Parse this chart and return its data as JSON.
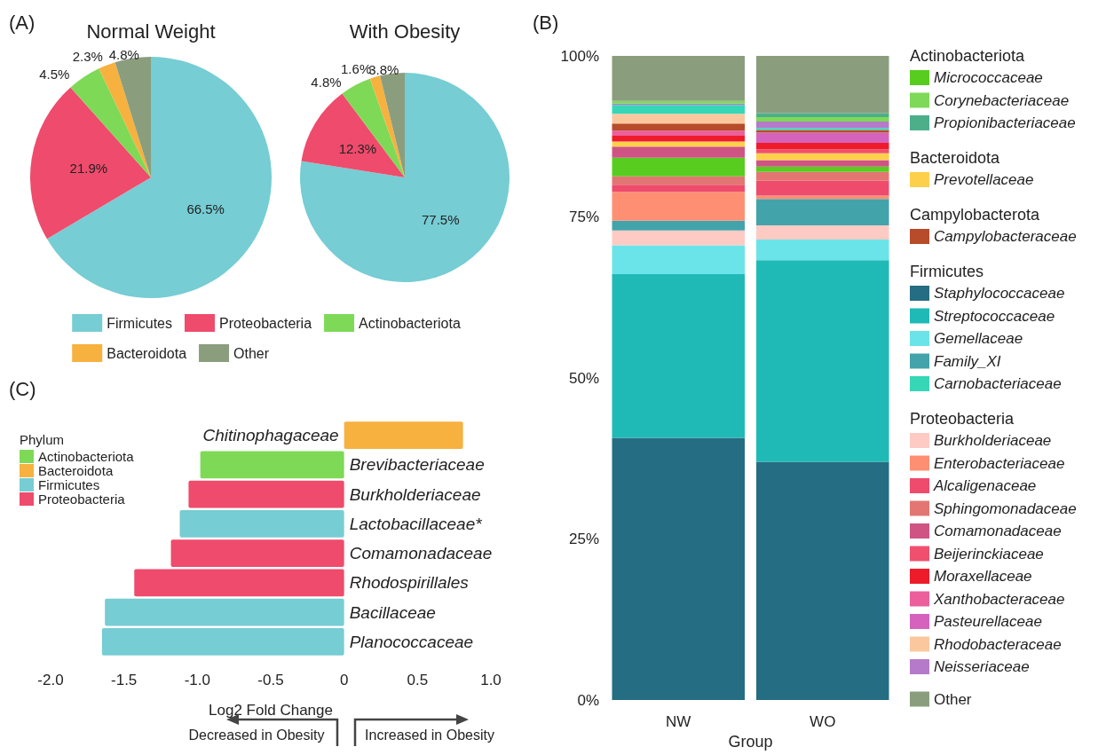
{
  "chart_data": [
    {
      "type": "pie",
      "annotations": [
        "(A)"
      ],
      "categories": [
        "Firmicutes",
        "Proteobacteria",
        "Actinobacteriota",
        "Bacteroidota",
        "Other"
      ],
      "colors": [
        "#76cdd3",
        "#ef4b6c",
        "#7ed957",
        "#f7b13e",
        "#8a9e7e"
      ],
      "legend": "bottom",
      "series": [
        {
          "name": "Normal Weight",
          "values": [
            66.5,
            21.9,
            4.5,
            2.3,
            4.8
          ],
          "value_labels": [
            "66.5%",
            "21.9%",
            "4.5%",
            "2.3%",
            "4.8%"
          ]
        },
        {
          "name": "With Obesity",
          "values": [
            77.5,
            12.3,
            4.8,
            1.6,
            3.8
          ],
          "value_labels": [
            "77.5%",
            "12.3%",
            "4.8%",
            "1.6%",
            "3.8%"
          ]
        }
      ]
    },
    {
      "type": "bar",
      "xlabel": "Group",
      "annotations": [
        "(B)",
        "Actinobacteriota",
        "Bacteroidota",
        "Campylobacterota",
        "Firmicutes",
        "Proteobacteria"
      ],
      "categories": [
        "NW",
        "WO"
      ],
      "stacked": true,
      "ylim": [
        0,
        100
      ],
      "yticks": [
        {
          "value": 0,
          "label": "0%"
        },
        {
          "value": 25,
          "label": "25%"
        },
        {
          "value": 50,
          "label": "50%"
        },
        {
          "value": 75,
          "label": "75%"
        },
        {
          "value": 100,
          "label": "100%"
        }
      ],
      "grid": false,
      "legend": "right",
      "series": [
        {
          "name": "Staphylococcaceae",
          "color": "#256d82",
          "values": [
            40.7,
            37.0
          ]
        },
        {
          "name": "Streptococcaceae",
          "color": "#1fbab6",
          "values": [
            25.4,
            31.3
          ]
        },
        {
          "name": "Gemellaceae",
          "color": "#6ae4e8",
          "values": [
            4.5,
            3.2
          ]
        },
        {
          "name": "Burkholderiaceae",
          "color": "#fecbc4",
          "values": [
            2.3,
            2.2
          ]
        },
        {
          "name": "Family_XI",
          "color": "#43a3aa",
          "values": [
            1.5,
            4.1
          ]
        },
        {
          "name": "Enterobacteriaceae",
          "color": "#fe8f72",
          "values": [
            4.5,
            0.5
          ]
        },
        {
          "name": "Alcaligenaceae",
          "color": "#ef4b6c",
          "values": [
            1.1,
            2.3
          ]
        },
        {
          "name": "Sphingomonadaceae",
          "color": "#e37673",
          "values": [
            1.3,
            1.4
          ]
        },
        {
          "name": "Micrococcaceae",
          "color": "#58cc1f",
          "values": [
            2.9,
            0.8
          ]
        },
        {
          "name": "Comamonadaceae",
          "color": "#cf5484",
          "values": [
            1.7,
            1.0
          ]
        },
        {
          "name": "Prevotellaceae",
          "color": "#fdd04b",
          "values": [
            0.8,
            1.1
          ]
        },
        {
          "name": "Beijerinckiaceae",
          "color": "#f0506e",
          "values": [
            null,
            0.6
          ]
        },
        {
          "name": "Moraxellaceae",
          "color": "#ee1b2b",
          "values": [
            0.9,
            1.0
          ]
        },
        {
          "name": "Xanthobacteraceae",
          "color": "#ec5f9c",
          "values": [
            0.8,
            null
          ]
        },
        {
          "name": "Pasteurellaceae",
          "color": "#d563bd",
          "values": [
            null,
            1.6
          ]
        },
        {
          "name": "Campylobacteraceae",
          "color": "#b84b2a",
          "values": [
            1.1,
            0.4
          ]
        },
        {
          "name": "Rhodobacteraceae",
          "color": "#fbc89e",
          "values": [
            1.5,
            null
          ]
        },
        {
          "name": "Carnobacteriaceae",
          "color": "#36d7b7",
          "values": [
            1.4,
            0.3
          ]
        },
        {
          "name": "Neisseriaceae",
          "color": "#b57ac9",
          "values": [
            0.2,
            1.0
          ]
        },
        {
          "name": "Corynebacteriaceae",
          "color": "#7dd957",
          "values": [
            0.4,
            0.7
          ]
        },
        {
          "name": "Propionibacteriaceae",
          "color": "#4caf8a",
          "values": [
            null,
            0.6
          ]
        },
        {
          "name": "Other",
          "color": "#8a9e7e",
          "values": [
            7.0,
            8.9
          ]
        }
      ]
    },
    {
      "type": "bar",
      "orientation": "horizontal",
      "stacked": true,
      "xlabel": "Log2 Fold Change",
      "legend_title": "Phylum",
      "legend": "top left",
      "annotations": [
        "(C)",
        "Decreased in Obesity",
        "Increased in Obesity"
      ],
      "categories": [
        "Chitinophagaceae",
        "Brevibacteriaceae",
        "Burkholderiaceae",
        "Lactobacillaceae*",
        "Comamonadaceae",
        "Rhodospirillales",
        "Bacillaceae",
        "Planococcaceae"
      ],
      "xlim": [
        -2,
        1
      ],
      "xticks": [
        {
          "value": -2,
          "label": "-2.0"
        },
        {
          "value": -1.5,
          "label": "-1.5"
        },
        {
          "value": -1,
          "label": "-1.0"
        },
        {
          "value": -0.5,
          "label": "-0.5"
        },
        0,
        0.5,
        {
          "value": 1,
          "label": "1.0"
        }
      ],
      "grid": false,
      "series": [
        {
          "name": "Actinobacteriota",
          "color": "#7ed957",
          "values": [
            null,
            -0.98,
            null,
            null,
            null,
            null,
            null,
            null
          ]
        },
        {
          "name": "Bacteroidota",
          "color": "#f7b13e",
          "values": [
            0.81,
            null,
            null,
            null,
            null,
            null,
            null,
            null
          ]
        },
        {
          "name": "Firmicutes",
          "color": "#76cdd3",
          "values": [
            null,
            null,
            null,
            -1.12,
            null,
            null,
            -1.63,
            -1.65
          ]
        },
        {
          "name": "Proteobacteria",
          "color": "#ef4b6c",
          "values": [
            null,
            null,
            -1.06,
            null,
            -1.18,
            -1.43,
            null,
            null
          ]
        }
      ]
    }
  ]
}
